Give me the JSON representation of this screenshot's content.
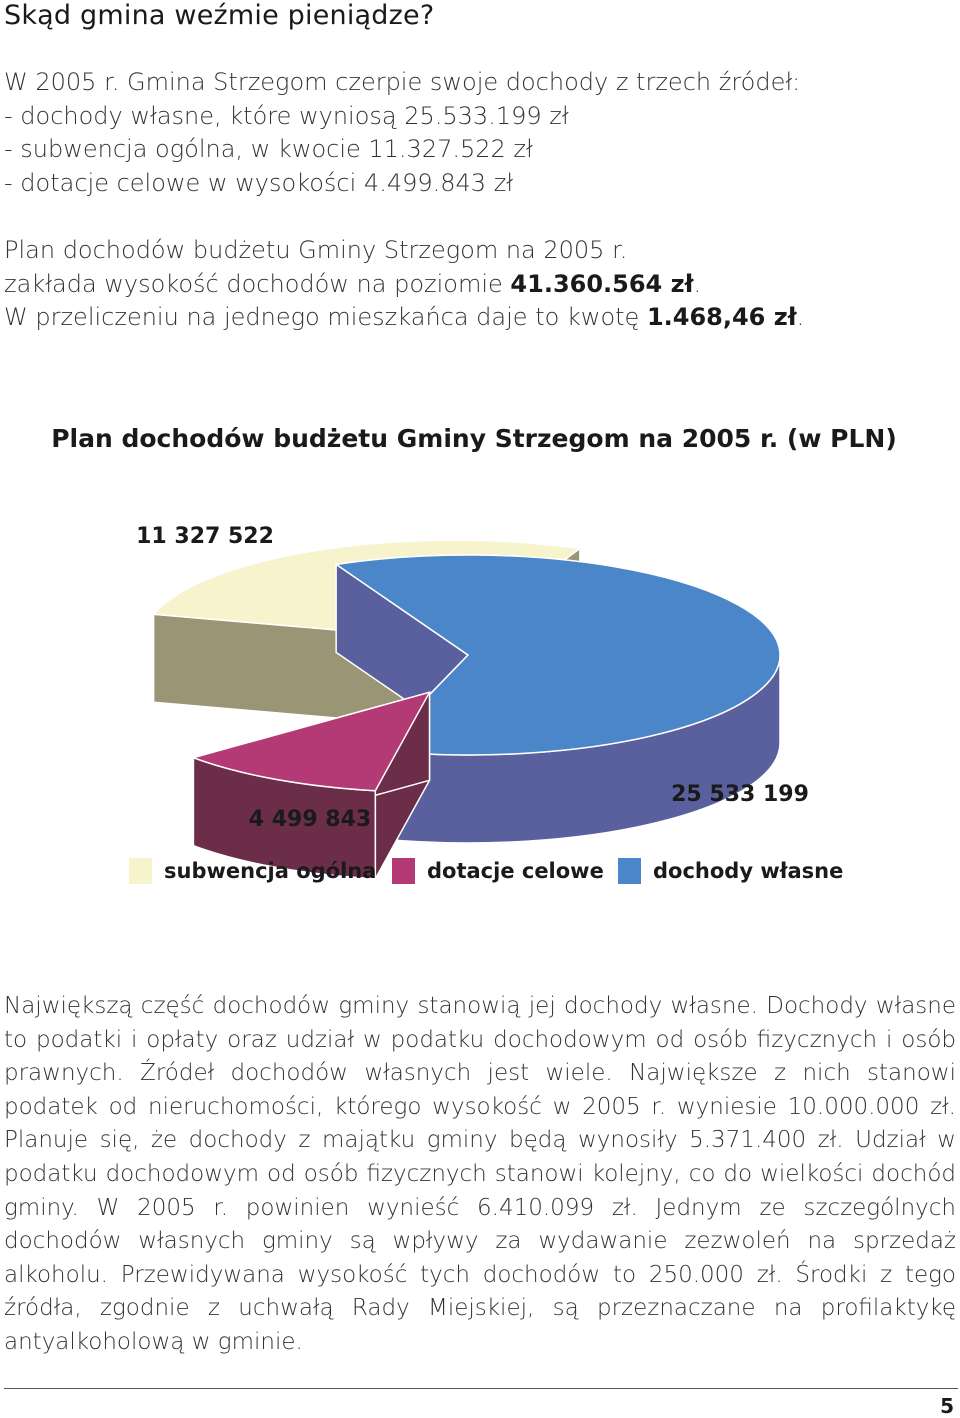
{
  "heading": "Skąd gmina weźmie pieniądze?",
  "intro": {
    "line1": "W 2005 r. Gmina Strzegom czerpie swoje dochody z trzech źródeł:",
    "line2": "- dochody własne, które wyniosą 25.533.199 zł",
    "line3": "- subwencja ogólna, w kwocie 11.327.522 zł",
    "line4": "- dotacje celowe w wysokości 4.499.843 zł",
    "line5": "Plan dochodów budżetu Gminy Strzegom na 2005 r.",
    "line6_pre": "zakłada wysokość dochodów na poziomie ",
    "line6_val": "41.360.564 zł",
    "line6_post": ".",
    "line7_pre": "W przeliczeniu na jednego mieszkańca daje to kwotę ",
    "line7_val": "1.468,46 zł",
    "line7_post": "."
  },
  "chart_data": {
    "type": "pie",
    "title": "Plan dochodów budżetu Gminy Strzegom na 2005 r. (w PLN)",
    "style": "3d-exploded",
    "legend_position": "bottom",
    "slices": [
      {
        "name": "subwencja ogólna",
        "value": 11327522,
        "label": "11 327 522",
        "color": "#f7f3cc",
        "side": "#9a9574"
      },
      {
        "name": "dotacje celowe",
        "value": 4499843,
        "label": "4 499 843",
        "color": "#b33a75",
        "side": "#6b2d48"
      },
      {
        "name": "dochody własne",
        "value": 25533199,
        "label": "25 533 199",
        "color": "#4a86c8",
        "side": "#5a5f9e"
      }
    ]
  },
  "body_text": "Największą część dochodów gminy stanowią jej dochody własne. Dochody własne to podatki i opłaty oraz udział w podatku dochodowym od osób fizycznych i osób prawnych. Źródeł dochodów własnych jest wiele. Największe z nich stanowi podatek od nieruchomości, którego wysokość w 2005 r. wyniesie 10.000.000 zł. Planuje się, że dochody z majątku gminy będą wynosiły 5.371.400 zł. Udział w podatku dochodowym od osób fizycznych stanowi kolejny, co do wielkości dochód gminy. W 2005 r. powinien wynieść 6.410.099 zł. Jednym ze szczególnych dochodów własnych gminy są wpływy za wydawanie zezwoleń na sprzedaż alkoholu. Przewidywana wysokość tych dochodów to 250.000 zł. Środki z tego źródła, zgodnie z uchwałą Rady Miejskiej, są przeznaczane na profilaktykę antyalkoholową w gminie.",
  "page_number": "5"
}
